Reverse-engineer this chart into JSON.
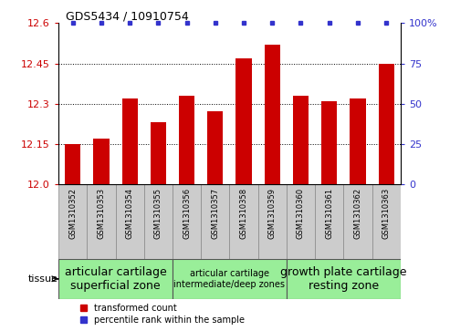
{
  "title": "GDS5434 / 10910754",
  "samples": [
    "GSM1310352",
    "GSM1310353",
    "GSM1310354",
    "GSM1310355",
    "GSM1310356",
    "GSM1310357",
    "GSM1310358",
    "GSM1310359",
    "GSM1310360",
    "GSM1310361",
    "GSM1310362",
    "GSM1310363"
  ],
  "bar_values": [
    12.15,
    12.17,
    12.32,
    12.23,
    12.33,
    12.27,
    12.47,
    12.52,
    12.33,
    12.31,
    12.32,
    12.45
  ],
  "bar_color": "#cc0000",
  "percentile_color": "#3333cc",
  "ylim_left": [
    12.0,
    12.6
  ],
  "ylim_right": [
    0,
    100
  ],
  "yticks_left": [
    12.0,
    12.15,
    12.3,
    12.45,
    12.6
  ],
  "yticks_right": [
    0,
    25,
    50,
    75,
    100
  ],
  "grid_values": [
    12.15,
    12.3,
    12.45
  ],
  "tissue_groups": [
    {
      "label": "articular cartilage\nsuperficial zone",
      "start": 0,
      "end": 3,
      "fontsize": 9
    },
    {
      "label": "articular cartilage\nintermediate/deep zones",
      "start": 4,
      "end": 7,
      "fontsize": 7
    },
    {
      "label": "growth plate cartilage\nresting zone",
      "start": 8,
      "end": 11,
      "fontsize": 9
    }
  ],
  "tissue_box_color": "#99ee99",
  "tick_box_color": "#cccccc",
  "legend_bar_label": "transformed count",
  "legend_pct_label": "percentile rank within the sample"
}
